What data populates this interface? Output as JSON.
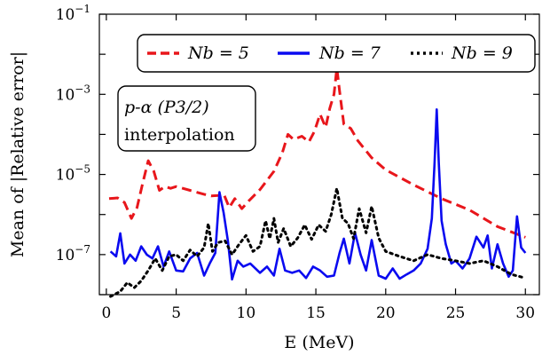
{
  "chart_data": {
    "type": "line",
    "xlabel": "E (MeV)",
    "ylabel": "Mean of |Relative error|",
    "xlim": [
      -0.5,
      31
    ],
    "ylim": [
      1e-08,
      0.1
    ],
    "yscale": "log",
    "xticks": [
      0,
      5,
      10,
      15,
      20,
      25,
      30
    ],
    "xtick_labels": [
      "0",
      "5",
      "10",
      "15",
      "20",
      "25",
      "30"
    ],
    "yticks": [
      1e-07,
      1e-05,
      0.001,
      0.1
    ],
    "ytick_labels": [
      "10−7",
      "10−5",
      "10−3",
      "10−1"
    ],
    "legend_position": "top-right",
    "grid": false,
    "annotation": {
      "line1": "p-α (P3/2)",
      "line2": "interpolation"
    },
    "series": [
      {
        "name": "N_b = 5",
        "legend_label": "Nb = 5",
        "color": "#e8161b",
        "dash": "dashed",
        "x": [
          0.2,
          0.8,
          1.3,
          1.8,
          2.2,
          2.6,
          3.0,
          3.4,
          3.8,
          4.2,
          4.6,
          5.0,
          6.0,
          7.0,
          7.5,
          8.0,
          8.4,
          8.8,
          9.2,
          9.7,
          10.2,
          11.0,
          12.0,
          12.6,
          13.0,
          13.4,
          14.0,
          14.5,
          14.9,
          15.3,
          15.7,
          16.0,
          16.3,
          16.5,
          16.7,
          17.0,
          17.5,
          18.0,
          19.0,
          20.0,
          22.0,
          24.0,
          26.0,
          28.0,
          30.0
        ],
        "y": [
          2.5e-06,
          2.6e-06,
          2e-06,
          8e-07,
          1.5e-06,
          6e-06,
          2.2e-05,
          1.2e-05,
          4e-06,
          5e-06,
          4.5e-06,
          5e-06,
          4e-06,
          3.2e-06,
          2.9e-06,
          3e-06,
          3.3e-06,
          1.5e-06,
          2.5e-06,
          1.4e-06,
          2.2e-06,
          4.2e-06,
          1.2e-05,
          3.5e-05,
          0.0001,
          7.5e-05,
          9e-05,
          6.5e-05,
          0.00012,
          0.00032,
          0.00015,
          0.00045,
          0.001,
          0.0045,
          0.0012,
          0.00018,
          0.00014,
          7e-05,
          2.6e-05,
          1.3e-05,
          5.5e-06,
          2.5e-06,
          1.3e-06,
          5e-07,
          2.7e-07
        ]
      },
      {
        "name": "N_b = 7",
        "legend_label": "Nb = 7",
        "color": "#0a0af0",
        "dash": "solid",
        "x": [
          0.3,
          0.7,
          1.0,
          1.3,
          1.7,
          2.1,
          2.5,
          2.9,
          3.3,
          3.7,
          4.1,
          4.5,
          5.0,
          5.5,
          6.0,
          6.5,
          7.0,
          7.4,
          7.8,
          8.1,
          8.4,
          8.7,
          9.0,
          9.4,
          9.8,
          10.3,
          11.0,
          11.5,
          12.0,
          12.4,
          12.8,
          13.3,
          13.8,
          14.3,
          14.8,
          15.3,
          15.8,
          16.3,
          16.7,
          17.0,
          17.4,
          17.8,
          18.2,
          18.6,
          19.0,
          19.5,
          20.0,
          20.5,
          21.0,
          21.5,
          22.0,
          22.5,
          23.0,
          23.3,
          23.5,
          23.65,
          23.8,
          24.0,
          24.3,
          24.7,
          25.0,
          25.5,
          26.0,
          26.5,
          27.0,
          27.3,
          27.6,
          28.0,
          28.4,
          28.8,
          29.1,
          29.4,
          29.7,
          30.0
        ],
        "y": [
          1.2e-07,
          9e-08,
          3.4e-07,
          6e-08,
          1e-07,
          7e-08,
          1.6e-07,
          1e-07,
          8e-08,
          1.6e-07,
          5e-08,
          1.2e-07,
          4e-08,
          3.8e-08,
          8e-08,
          1.1e-07,
          3e-08,
          6e-08,
          1.1e-07,
          3.6e-06,
          1.1e-06,
          2.2e-07,
          2.4e-08,
          7e-08,
          5e-08,
          6e-08,
          3.5e-08,
          5e-08,
          3e-08,
          1.4e-07,
          4e-08,
          3.5e-08,
          4e-08,
          2.6e-08,
          5e-08,
          4e-08,
          2.8e-08,
          3e-08,
          1.1e-07,
          2.5e-07,
          6e-08,
          3.5e-07,
          1e-07,
          4e-08,
          2.3e-07,
          3e-08,
          2.5e-08,
          4.5e-08,
          2.5e-08,
          3.2e-08,
          4e-08,
          6e-08,
          1.4e-07,
          8e-07,
          2e-05,
          0.00042,
          2e-05,
          7e-07,
          1.8e-07,
          6e-08,
          7e-08,
          4.5e-08,
          8e-08,
          2.8e-07,
          1.5e-07,
          3e-07,
          4.5e-08,
          1.8e-07,
          6e-08,
          2.8e-08,
          4e-08,
          9e-07,
          1.5e-07,
          1.1e-07
        ]
      },
      {
        "name": "N_b = 9",
        "legend_label": "Nb = 9",
        "color": "#000000",
        "dash": "dotted",
        "x": [
          0.3,
          1.0,
          1.5,
          2.0,
          2.5,
          3.0,
          3.5,
          4.0,
          4.5,
          5.0,
          5.5,
          6.0,
          6.5,
          7.0,
          7.3,
          7.6,
          8.0,
          8.5,
          9.0,
          9.5,
          10.0,
          10.5,
          11.0,
          11.4,
          11.7,
          12.0,
          12.3,
          12.7,
          13.2,
          13.7,
          14.2,
          14.7,
          15.2,
          15.7,
          16.1,
          16.5,
          16.9,
          17.3,
          17.7,
          18.1,
          18.6,
          19.0,
          19.5,
          20.0,
          21.0,
          22.0,
          23.0,
          24.0,
          25.0,
          26.0,
          27.0,
          28.0,
          29.0,
          30.0
        ],
        "y": [
          9e-09,
          1.2e-08,
          2e-08,
          1.5e-08,
          2.2e-08,
          4e-08,
          8e-08,
          4e-08,
          9e-08,
          1e-07,
          7e-08,
          1.3e-07,
          9e-08,
          1.5e-07,
          6e-07,
          1.2e-07,
          2e-07,
          2.2e-07,
          1e-07,
          1.8e-07,
          3e-07,
          1.2e-07,
          1.6e-07,
          7e-07,
          2.5e-07,
          8e-07,
          2e-07,
          4.5e-07,
          1.6e-07,
          2.6e-07,
          5.5e-07,
          2.4e-07,
          5.5e-07,
          3.8e-07,
          1e-06,
          4.5e-06,
          8e-07,
          6e-07,
          2.5e-07,
          1.4e-06,
          3.5e-07,
          1.6e-06,
          2.6e-07,
          1.2e-07,
          9e-08,
          7e-08,
          1e-07,
          8e-08,
          7e-08,
          6e-08,
          7e-08,
          5e-08,
          3.2e-08,
          2.6e-08
        ]
      }
    ]
  }
}
